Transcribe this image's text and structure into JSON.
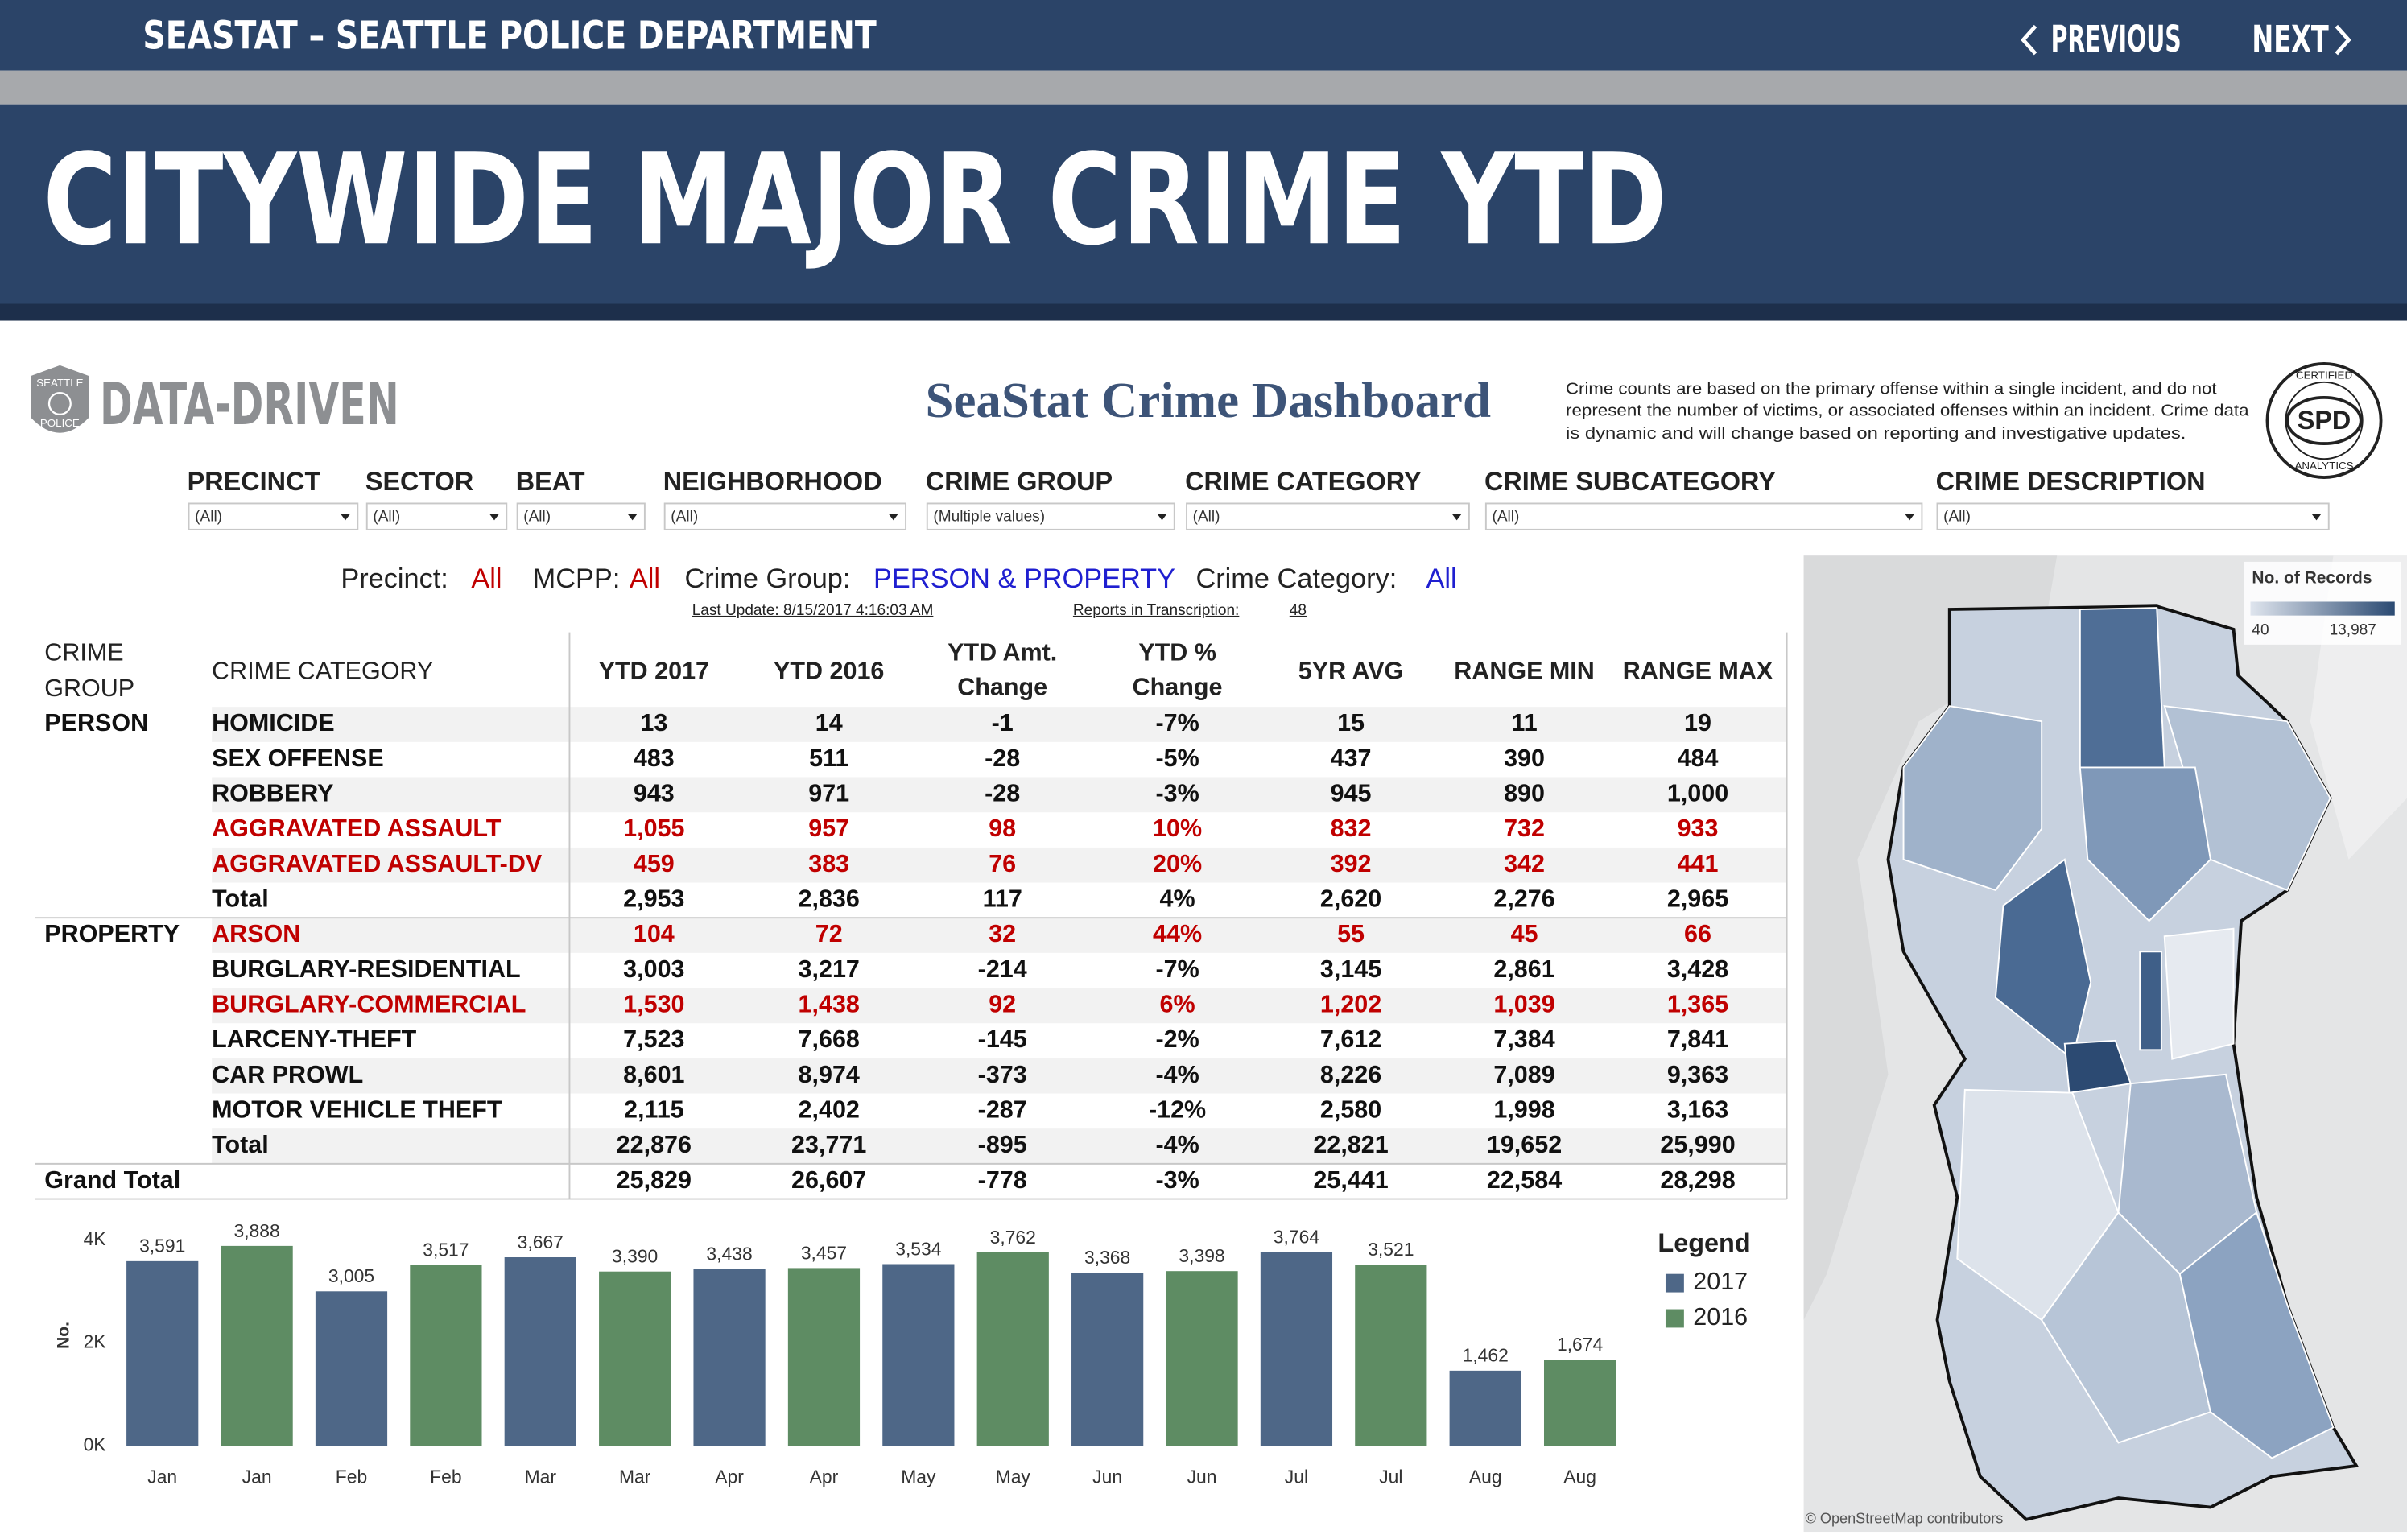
{
  "header": {
    "site_title": "SEASTAT – SEATTLE POLICE DEPARTMENT",
    "previous": "PREVIOUS",
    "next": "NEXT",
    "page_title": "CITYWIDE MAJOR CRIME YTD"
  },
  "dashboard": {
    "logo_badge": [
      "SEATTLE",
      "POLICE"
    ],
    "logo_text": "DATA-DRIVEN",
    "title": "SeaStat Crime Dashboard",
    "disclaimer": [
      "Crime counts are based on the primary offense within a single incident, and do not",
      "represent the number of victims, or associated offenses within an incident. Crime data",
      "is dynamic and will change based on reporting and investigative updates."
    ],
    "seal": {
      "center": "SPD",
      "top": "CERTIFIED",
      "bottom": "ANALYTICS"
    }
  },
  "filters": [
    {
      "label": "PRECINCT",
      "value": "(All)"
    },
    {
      "label": "SECTOR",
      "value": "(All)"
    },
    {
      "label": "BEAT",
      "value": "(All)"
    },
    {
      "label": "NEIGHBORHOOD",
      "value": "(All)"
    },
    {
      "label": "CRIME GROUP",
      "value": "(Multiple values)"
    },
    {
      "label": "CRIME CATEGORY",
      "value": "(All)"
    },
    {
      "label": "CRIME SUBCATEGORY",
      "value": "(All)"
    },
    {
      "label": "CRIME DESCRIPTION",
      "value": "(All)"
    }
  ],
  "summary": {
    "parts": [
      {
        "text": "Precinct:",
        "color": "#222222"
      },
      {
        "text": "All",
        "color": "#c00000"
      },
      {
        "text": "MCPP:",
        "color": "#222222"
      },
      {
        "text": "All",
        "color": "#c00000"
      },
      {
        "text": "Crime Group:",
        "color": "#222222"
      },
      {
        "text": "PERSON & PROPERTY",
        "color": "#1f1fd0"
      },
      {
        "text": "Crime Category:",
        "color": "#222222"
      },
      {
        "text": "All",
        "color": "#1f1fd0"
      }
    ],
    "last_update": "Last Update: 8/15/2017 4:16:03 AM",
    "reports_label": "Reports in Transcription:",
    "reports_value": "48"
  },
  "table": {
    "columns": [
      [
        "CRIME",
        "GROUP"
      ],
      [
        "CRIME CATEGORY"
      ],
      [
        "YTD 2017"
      ],
      [
        "YTD 2016"
      ],
      [
        "YTD Amt.",
        "Change"
      ],
      [
        "YTD %",
        "Change"
      ],
      [
        "5YR AVG"
      ],
      [
        "RANGE MIN"
      ],
      [
        "RANGE MAX"
      ]
    ],
    "rows": [
      {
        "group": "PERSON",
        "category": "HOMICIDE",
        "cells": [
          "13",
          "14",
          "-1",
          "-7%",
          "15",
          "11",
          "19"
        ],
        "color": "#111111"
      },
      {
        "category": "SEX OFFENSE",
        "cells": [
          "483",
          "511",
          "-28",
          "-5%",
          "437",
          "390",
          "484"
        ],
        "color": "#111111"
      },
      {
        "category": "ROBBERY",
        "cells": [
          "943",
          "971",
          "-28",
          "-3%",
          "945",
          "890",
          "1,000"
        ],
        "color": "#111111"
      },
      {
        "category": "AGGRAVATED ASSAULT",
        "cells": [
          "1,055",
          "957",
          "98",
          "10%",
          "832",
          "732",
          "933"
        ],
        "color": "#c00000"
      },
      {
        "category": "AGGRAVATED ASSAULT-DV",
        "cells": [
          "459",
          "383",
          "76",
          "20%",
          "392",
          "342",
          "441"
        ],
        "color": "#c00000"
      },
      {
        "category": "Total",
        "cells": [
          "2,953",
          "2,836",
          "117",
          "4%",
          "2,620",
          "2,276",
          "2,965"
        ],
        "color": "#111111"
      },
      {
        "group": "PROPERTY",
        "category": "ARSON",
        "cells": [
          "104",
          "72",
          "32",
          "44%",
          "55",
          "45",
          "66"
        ],
        "color": "#c00000"
      },
      {
        "category": "BURGLARY-RESIDENTIAL",
        "cells": [
          "3,003",
          "3,217",
          "-214",
          "-7%",
          "3,145",
          "2,861",
          "3,428"
        ],
        "color": "#111111"
      },
      {
        "category": "BURGLARY-COMMERCIAL",
        "cells": [
          "1,530",
          "1,438",
          "92",
          "6%",
          "1,202",
          "1,039",
          "1,365"
        ],
        "color": "#c00000"
      },
      {
        "category": "LARCENY-THEFT",
        "cells": [
          "7,523",
          "7,668",
          "-145",
          "-2%",
          "7,612",
          "7,384",
          "7,841"
        ],
        "color": "#111111"
      },
      {
        "category": "CAR PROWL",
        "cells": [
          "8,601",
          "8,974",
          "-373",
          "-4%",
          "8,226",
          "7,089",
          "9,363"
        ],
        "color": "#111111"
      },
      {
        "category": "MOTOR VEHICLE THEFT",
        "cells": [
          "2,115",
          "2,402",
          "-287",
          "-12%",
          "2,580",
          "1,998",
          "3,163"
        ],
        "color": "#111111"
      },
      {
        "category": "Total",
        "cells": [
          "22,876",
          "23,771",
          "-895",
          "-4%",
          "22,821",
          "19,652",
          "25,990"
        ],
        "color": "#111111"
      },
      {
        "group": "Grand Total",
        "cells": [
          "25,829",
          "26,607",
          "-778",
          "-3%",
          "25,441",
          "22,584",
          "28,298"
        ],
        "color": "#111111"
      }
    ]
  },
  "chart_data": {
    "type": "bar",
    "y_label": "No.",
    "legend_title": "Legend",
    "categories": [
      "Jan",
      "Jan",
      "Feb",
      "Feb",
      "Mar",
      "Mar",
      "Apr",
      "Apr",
      "May",
      "May",
      "Jun",
      "Jun",
      "Jul",
      "Jul",
      "Aug",
      "Aug"
    ],
    "series": [
      {
        "name": "2017",
        "color": "#4e6787",
        "values": [
          3591,
          null,
          3005,
          null,
          3667,
          null,
          3438,
          null,
          3534,
          null,
          3368,
          null,
          3764,
          null,
          1462,
          null
        ],
        "value_labels": [
          "3,591",
          null,
          "3,005",
          null,
          "3,667",
          null,
          "3,438",
          null,
          "3,534",
          null,
          "3,368",
          null,
          "3,764",
          null,
          "1,462",
          null
        ]
      },
      {
        "name": "2016",
        "color": "#5e8c63",
        "values": [
          null,
          3888,
          null,
          3517,
          null,
          3390,
          null,
          3457,
          null,
          3762,
          null,
          3398,
          null,
          3521,
          null,
          1674
        ],
        "value_labels": [
          null,
          "3,888",
          null,
          "3,517",
          null,
          "3,390",
          null,
          "3,457",
          null,
          "3,762",
          null,
          "3,398",
          null,
          "3,521",
          null,
          "1,674"
        ]
      }
    ],
    "ylim": [
      0,
      4000
    ],
    "yticks": [
      {
        "value": 0,
        "label": "0K"
      },
      {
        "value": 2000,
        "label": "2K"
      },
      {
        "value": 4000,
        "label": "4K"
      }
    ],
    "grid": false
  },
  "map": {
    "legend_title": "No. of Records",
    "legend_min": "40",
    "legend_max": "13,987",
    "attribution": "© OpenStreetMap contributors"
  }
}
